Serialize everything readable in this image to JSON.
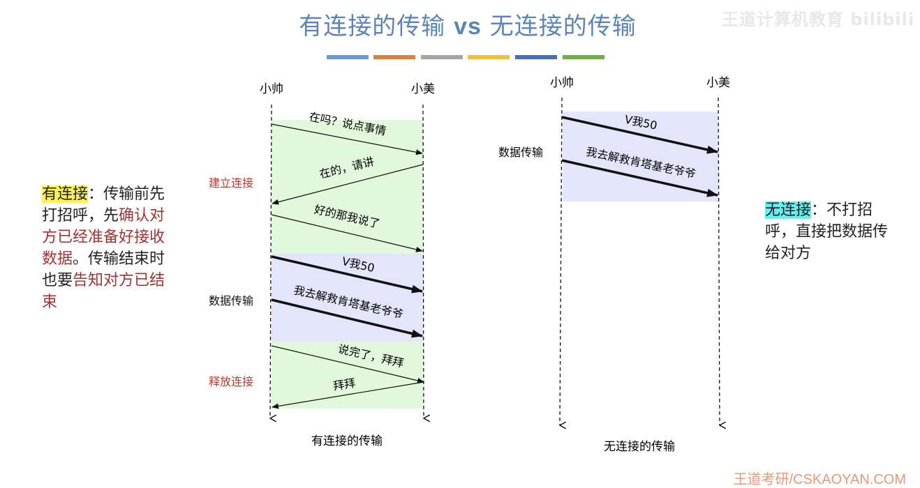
{
  "title": {
    "part1": "有连接的传输",
    "vs": "vs",
    "part2": "无连接的传输"
  },
  "watermark": "王道计算机教育 bilibili",
  "footer_watermark": "王道考研/CSKAOYAN.COM",
  "colors": {
    "title": "#5b85b8",
    "bars": [
      "#6b9bd1",
      "#d9823f",
      "#a5a5a5",
      "#f0c03a",
      "#4a6fb5",
      "#70ad47"
    ],
    "connect_fill": "#e2f8dc",
    "data_fill": "#e3e6fa",
    "phase_label": "#b83a2a"
  },
  "left": {
    "sender": "小帅",
    "receiver": "小美",
    "phases": {
      "establish": "建立连接",
      "data": "数据传输",
      "release": "释放连接"
    },
    "messages": [
      "在吗？说点事情",
      "在的，请讲",
      "好的那我说了",
      "V我50",
      "我去解救肯塔基老爷爷",
      "说完了，拜拜",
      "拜拜"
    ],
    "caption": "有连接的传输"
  },
  "right": {
    "sender": "小帅",
    "receiver": "小美",
    "phase": "数据传输",
    "messages": [
      "V我50",
      "我去解救肯塔基老爷爷"
    ],
    "caption": "无连接的传输"
  },
  "note_left": {
    "term": "有连接",
    "colon": "：",
    "text1": "传输前先打招呼，先",
    "red1": "确认对方已经准备好接收数据",
    "text2": "。传输结束时也要",
    "red2": "告知对方已结束"
  },
  "note_right": {
    "term": "无连接",
    "colon": "：",
    "text": "不打招呼，直接把数据传给对方"
  }
}
